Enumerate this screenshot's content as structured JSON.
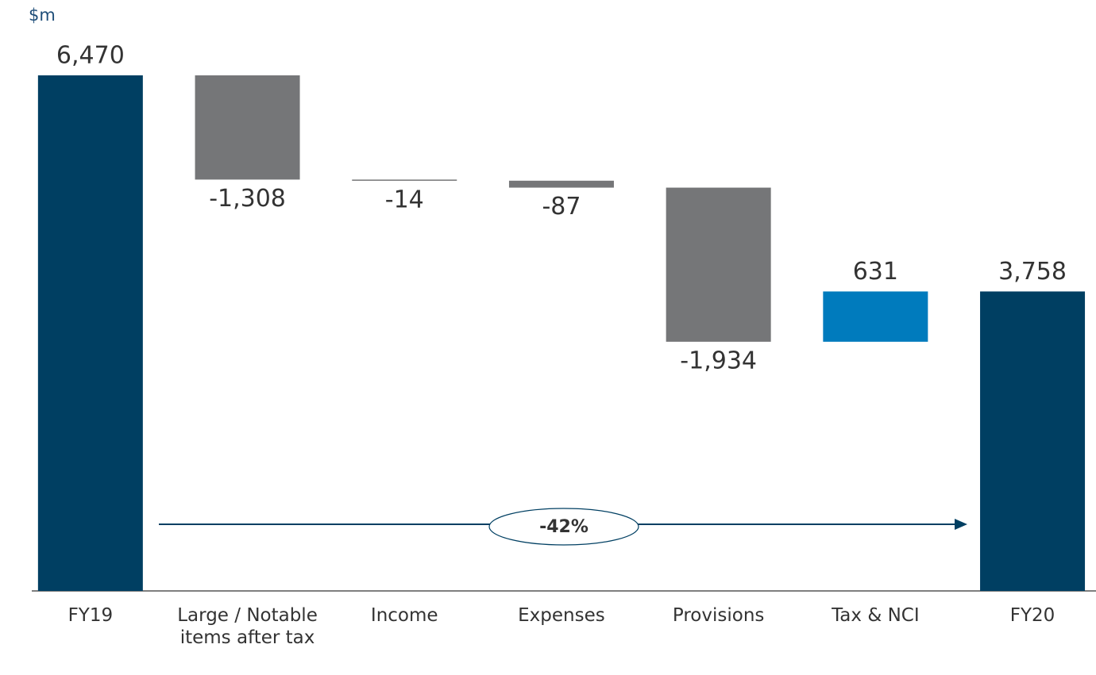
{
  "chart_data": {
    "type": "waterfall",
    "unit_label": "$m",
    "categories": [
      "FY19",
      "Large / Notable items after tax",
      "Income",
      "Expenses",
      "Provisions",
      "Tax & NCI",
      "FY20"
    ],
    "measure": [
      "total",
      "relative",
      "relative",
      "relative",
      "relative",
      "relative",
      "total"
    ],
    "values": [
      6470,
      -1308,
      -14,
      -87,
      -1934,
      631,
      3758
    ],
    "value_labels": [
      "6,470",
      "-1,308",
      "-14",
      "-87",
      "-1,934",
      "631",
      "3,758"
    ],
    "colors": {
      "total": "#003f62",
      "decrease": "#757678",
      "increase": "#007bbd"
    },
    "annotation": "-42%"
  }
}
